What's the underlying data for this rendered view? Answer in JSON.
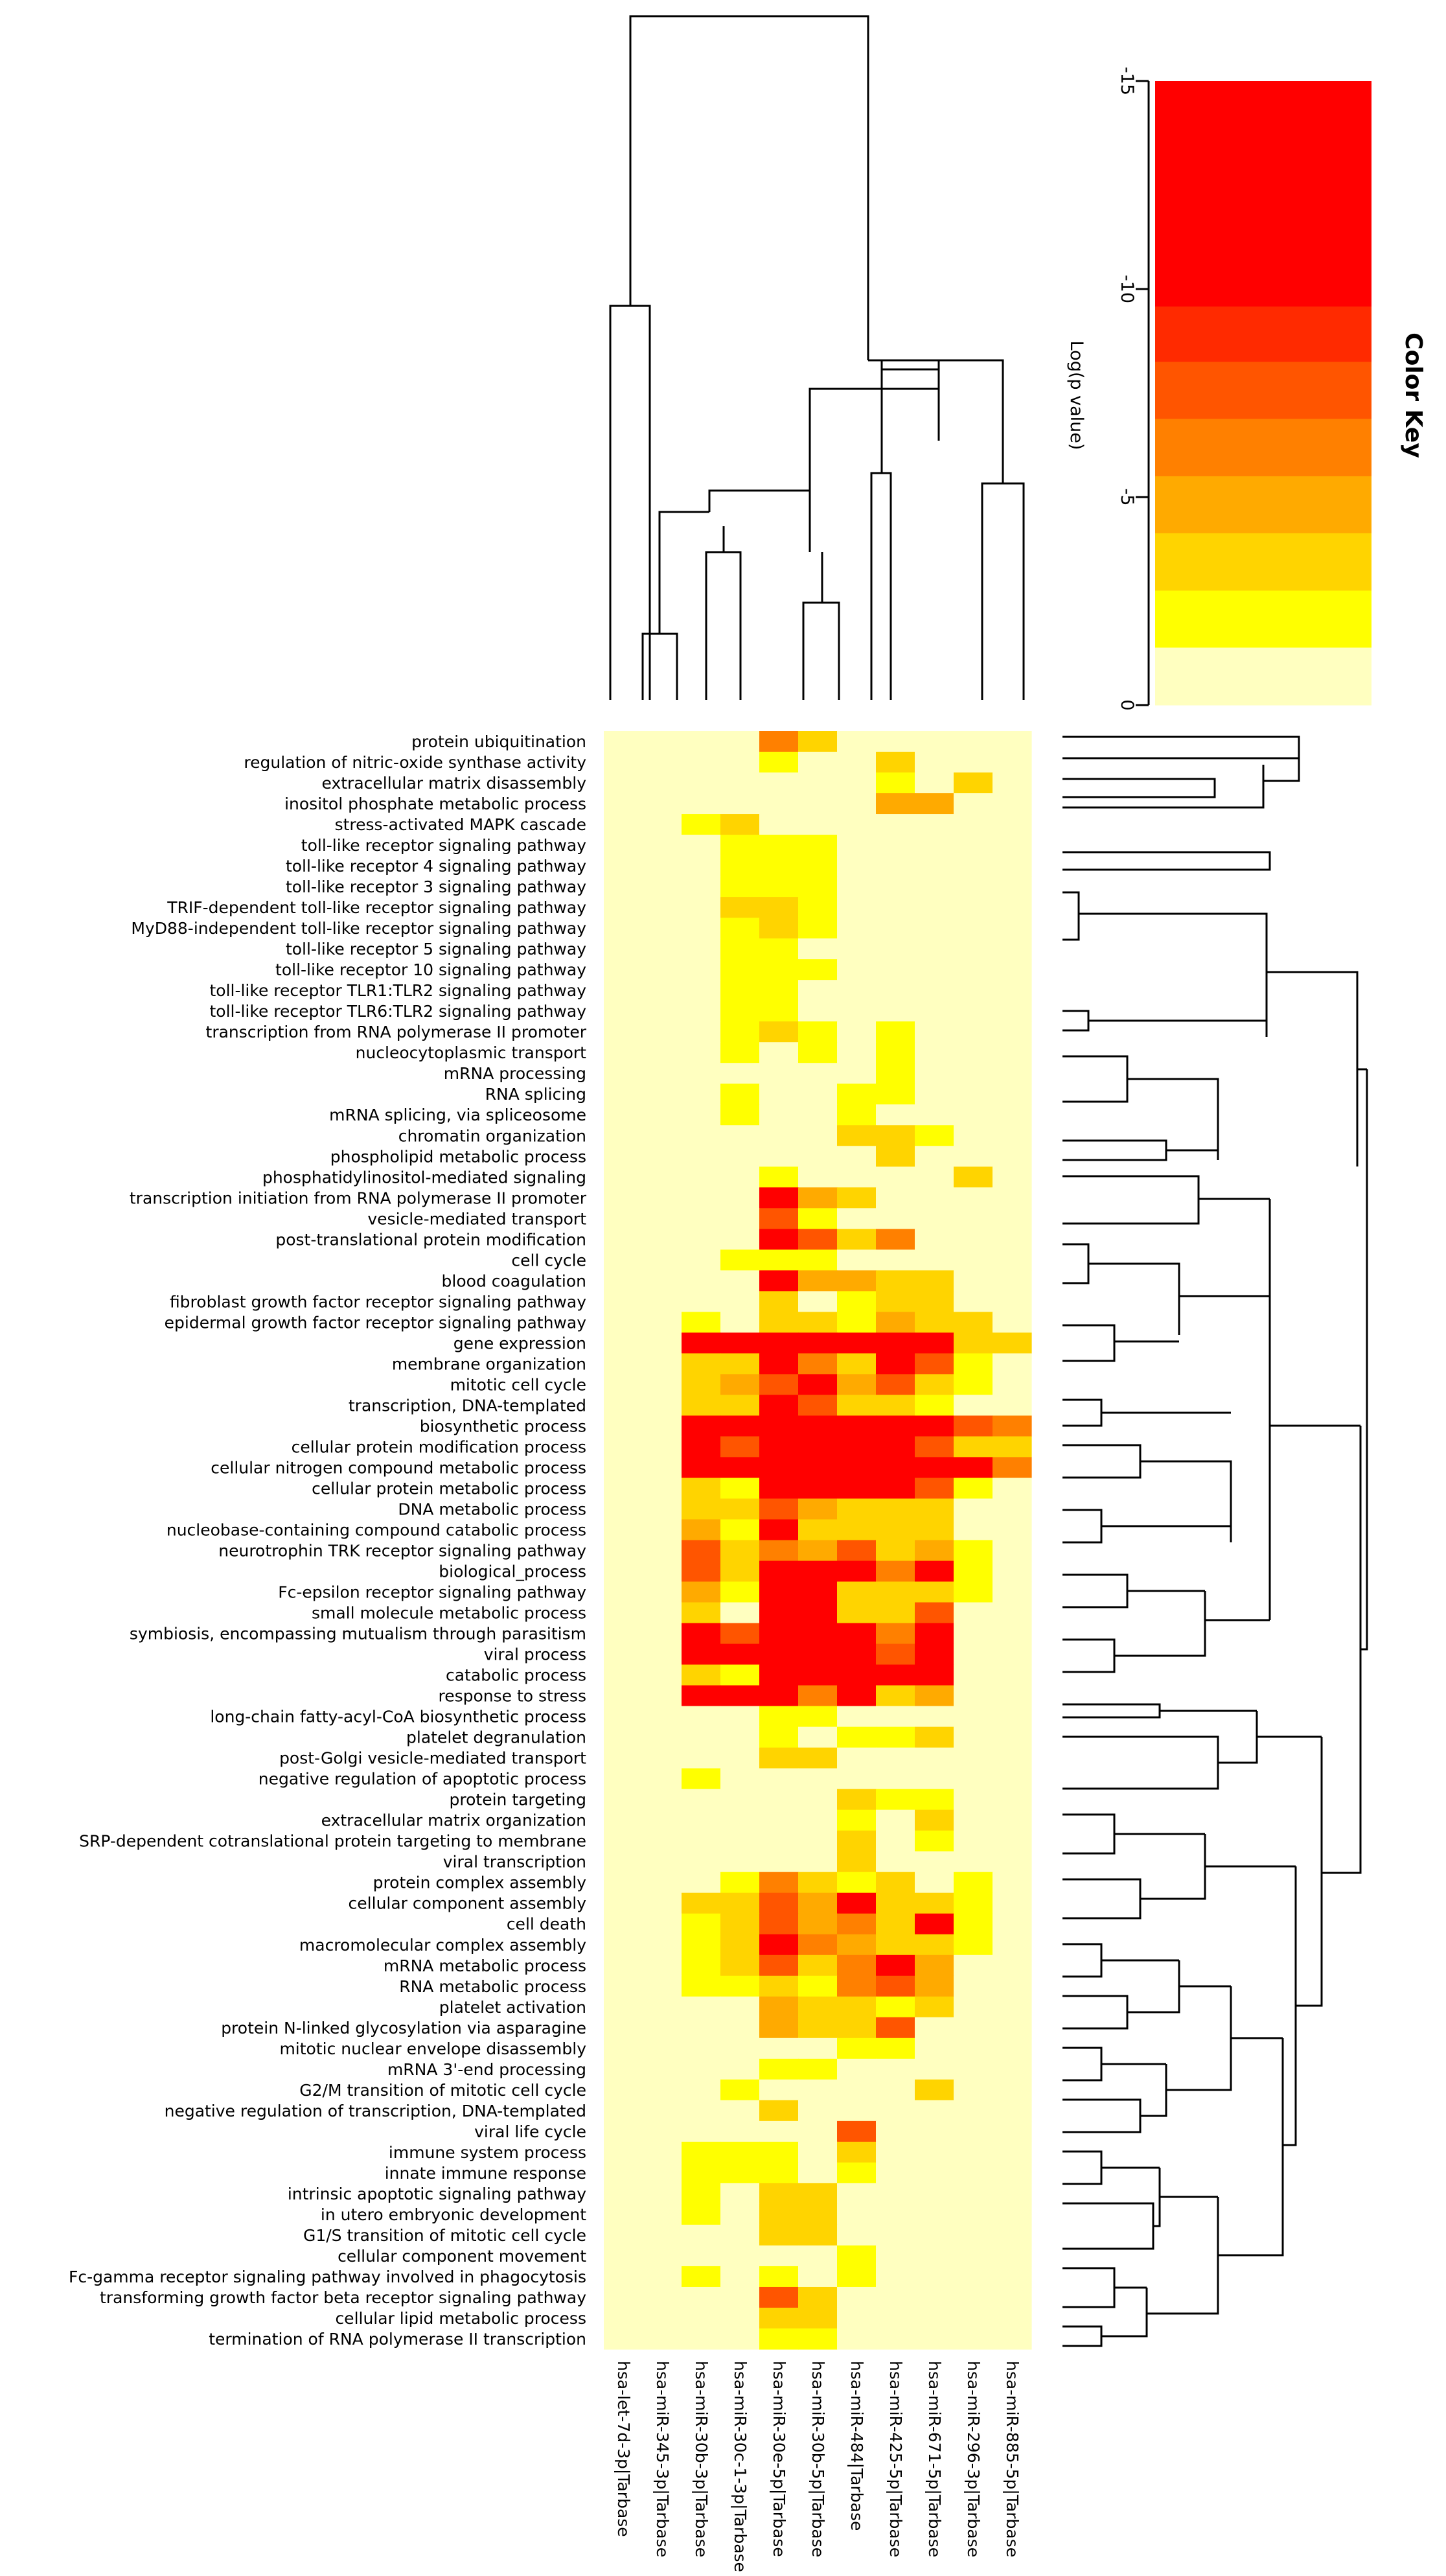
{
  "chart_data": {
    "type": "heatmap",
    "title": "",
    "value_label": "Log(p value)",
    "columns": [
      "hsa-let-7d-3p|Tarbase",
      "hsa-miR-345-3p|Tarbase",
      "hsa-miR-30b-3p|Tarbase",
      "hsa-miR-30c-1-3p|Tarbase",
      "hsa-miR-30e-5p|Tarbase",
      "hsa-miR-30b-5p|Tarbase",
      "hsa-miR-484|Tarbase",
      "hsa-miR-425-5p|Tarbase",
      "hsa-miR-671-5p|Tarbase",
      "hsa-miR-296-3p|Tarbase",
      "hsa-miR-885-5p|Tarbase"
    ],
    "rows": [
      "protein ubiquitination",
      "regulation of nitric-oxide synthase activity",
      "extracellular matrix disassembly",
      "inositol phosphate metabolic process",
      "stress-activated MAPK cascade",
      "toll-like receptor signaling pathway",
      "toll-like receptor 4 signaling pathway",
      "toll-like receptor 3 signaling pathway",
      "TRIF-dependent toll-like receptor signaling pathway",
      "MyD88-independent toll-like receptor signaling pathway",
      "toll-like receptor 5 signaling pathway",
      "toll-like receptor 10 signaling pathway",
      "toll-like receptor TLR1:TLR2 signaling pathway",
      "toll-like receptor TLR6:TLR2 signaling pathway",
      "transcription from RNA polymerase II promoter",
      "nucleocytoplasmic transport",
      "mRNA processing",
      "RNA splicing",
      "mRNA splicing, via spliceosome",
      "chromatin organization",
      "phospholipid metabolic process",
      "phosphatidylinositol-mediated signaling",
      "transcription initiation from RNA polymerase II promoter",
      "vesicle-mediated transport",
      "post-translational protein modification",
      "cell cycle",
      "blood coagulation",
      "fibroblast growth factor receptor signaling pathway",
      "epidermal growth factor receptor signaling pathway",
      "gene expression",
      "membrane organization",
      "mitotic cell cycle",
      "transcription, DNA-templated",
      "biosynthetic process",
      "cellular protein modification process",
      "cellular nitrogen compound metabolic process",
      "cellular protein metabolic process",
      "DNA metabolic process",
      "nucleobase-containing compound catabolic process",
      "neurotrophin TRK receptor signaling pathway",
      "biological_process",
      "Fc-epsilon receptor signaling pathway",
      "small molecule metabolic process",
      "symbiosis, encompassing mutualism through parasitism",
      "viral process",
      "catabolic process",
      "response to stress",
      "long-chain fatty-acyl-CoA biosynthetic process",
      "platelet degranulation",
      "post-Golgi vesicle-mediated transport",
      "negative regulation of apoptotic process",
      "protein targeting",
      "extracellular matrix organization",
      "SRP-dependent cotranslational protein targeting to membrane",
      "viral transcription",
      "protein complex assembly",
      "cellular component assembly",
      "cell death",
      "macromolecular complex assembly",
      "mRNA metabolic process",
      "RNA metabolic process",
      "platelet activation",
      "protein N-linked glycosylation via asparagine",
      "mitotic nuclear envelope disassembly",
      "mRNA 3'-end processing",
      "G2/M transition of mitotic cell cycle",
      "negative regulation of transcription, DNA-templated",
      "viral life cycle",
      "immune system process",
      "innate immune response",
      "intrinsic apoptotic signaling pathway",
      "in utero embryonic development",
      "G1/S transition of mitotic cell cycle",
      "cellular component movement",
      "Fc-gamma receptor signaling pathway involved in phagocytosis",
      "transforming growth factor beta receptor signaling pathway",
      "cellular lipid metabolic process",
      "termination of RNA polymerase II transcription"
    ],
    "values": [
      [
        0,
        0,
        0,
        0,
        -6,
        -3,
        0,
        0,
        0,
        0,
        0
      ],
      [
        0,
        0,
        0,
        0,
        -2,
        0,
        0,
        -4,
        0,
        0,
        0
      ],
      [
        0,
        0,
        0,
        0,
        0,
        0,
        0,
        -2,
        0,
        -4,
        0
      ],
      [
        0,
        0,
        0,
        0,
        0,
        0,
        0,
        -5,
        -5,
        0,
        0
      ],
      [
        0,
        0,
        -2,
        -3,
        0,
        0,
        0,
        0,
        0,
        0,
        0
      ],
      [
        0,
        0,
        0,
        -2,
        -2,
        -2,
        0,
        0,
        0,
        0,
        0
      ],
      [
        0,
        0,
        0,
        -2,
        -2,
        -2,
        0,
        0,
        0,
        0,
        0
      ],
      [
        0,
        0,
        0,
        -2,
        -2,
        -2,
        0,
        0,
        0,
        0,
        0
      ],
      [
        0,
        0,
        0,
        -3,
        -3,
        -2,
        0,
        0,
        0,
        0,
        0
      ],
      [
        0,
        0,
        0,
        -2,
        -3,
        -2,
        0,
        0,
        0,
        0,
        0
      ],
      [
        0,
        0,
        0,
        -2,
        -2,
        0,
        0,
        0,
        0,
        0,
        0
      ],
      [
        0,
        0,
        0,
        -2,
        -2,
        -2,
        0,
        0,
        0,
        0,
        0
      ],
      [
        0,
        0,
        0,
        -2,
        -2,
        0,
        0,
        0,
        0,
        0,
        0
      ],
      [
        0,
        0,
        0,
        -2,
        -2,
        0,
        0,
        0,
        0,
        0,
        0
      ],
      [
        0,
        0,
        0,
        -2,
        -3,
        -2,
        0,
        -2,
        0,
        0,
        0
      ],
      [
        0,
        0,
        0,
        -2,
        0,
        -2,
        0,
        -2,
        0,
        0,
        0
      ],
      [
        0,
        0,
        0,
        0,
        0,
        0,
        0,
        -2,
        0,
        0,
        0
      ],
      [
        0,
        0,
        0,
        -2,
        0,
        0,
        -2,
        -2,
        0,
        0,
        0
      ],
      [
        0,
        0,
        0,
        -2,
        0,
        0,
        -2,
        0,
        0,
        0,
        0
      ],
      [
        0,
        0,
        0,
        0,
        0,
        0,
        -3,
        -3,
        -2,
        0,
        0
      ],
      [
        0,
        0,
        0,
        0,
        0,
        0,
        0,
        -3,
        0,
        0,
        0
      ],
      [
        0,
        0,
        0,
        0,
        -2,
        0,
        0,
        0,
        0,
        -3,
        0
      ],
      [
        0,
        0,
        0,
        0,
        -14,
        -5,
        -3,
        0,
        0,
        0,
        0
      ],
      [
        0,
        0,
        0,
        0,
        -8,
        -2,
        0,
        0,
        0,
        0,
        0
      ],
      [
        0,
        0,
        0,
        0,
        -14,
        -8,
        -4,
        -6,
        0,
        0,
        0
      ],
      [
        0,
        0,
        0,
        -2,
        -2,
        -2,
        0,
        0,
        0,
        0,
        0
      ],
      [
        0,
        0,
        0,
        0,
        -10,
        -5,
        -5,
        -3,
        -4,
        0,
        0
      ],
      [
        0,
        0,
        0,
        0,
        -3,
        0,
        -2,
        -3,
        -3,
        0,
        0
      ],
      [
        0,
        0,
        -2,
        0,
        -3,
        -4,
        -2,
        -5,
        -4,
        -3,
        0
      ],
      [
        0,
        0,
        -15,
        -15,
        -15,
        -15,
        -15,
        -15,
        -15,
        -4,
        -3
      ],
      [
        0,
        0,
        -4,
        -3,
        -10,
        -6,
        -4,
        -10,
        -8,
        -2,
        0
      ],
      [
        0,
        0,
        -3,
        -5,
        -8,
        -10,
        -5,
        -8,
        -3,
        -2,
        0
      ],
      [
        0,
        0,
        -3,
        -4,
        -10,
        -8,
        -3,
        -4,
        -2,
        0,
        0
      ],
      [
        0,
        0,
        -15,
        -15,
        -15,
        -15,
        -15,
        -15,
        -10,
        -8,
        -6
      ],
      [
        0,
        0,
        -15,
        -7,
        -15,
        -15,
        -15,
        -15,
        -8,
        -4,
        -3
      ],
      [
        0,
        0,
        -15,
        -15,
        -15,
        -15,
        -15,
        -15,
        -15,
        -15,
        -6
      ],
      [
        0,
        0,
        -3,
        -2,
        -15,
        -15,
        -15,
        -10,
        -8,
        -2,
        0
      ],
      [
        0,
        0,
        -3,
        -4,
        -8,
        -5,
        -3,
        -3,
        -3,
        0,
        0
      ],
      [
        0,
        0,
        -5,
        -2,
        -10,
        -4,
        -3,
        -4,
        -3,
        0,
        0
      ],
      [
        0,
        0,
        -7,
        -3,
        -6,
        -5,
        -8,
        -4,
        -5,
        -2,
        0
      ],
      [
        0,
        0,
        -8,
        -4,
        -15,
        -15,
        -10,
        -6,
        -10,
        -2,
        0
      ],
      [
        0,
        0,
        -5,
        -2,
        -15,
        -12,
        -3,
        -3,
        -3,
        -2,
        0
      ],
      [
        0,
        0,
        -4,
        0,
        -15,
        -10,
        -3,
        -3,
        -8,
        0,
        0
      ],
      [
        0,
        0,
        -10,
        -8,
        -15,
        -15,
        -15,
        -6,
        -10,
        0,
        0
      ],
      [
        0,
        0,
        -10,
        -10,
        -15,
        -15,
        -15,
        -8,
        -15,
        0,
        0
      ],
      [
        0,
        0,
        -3,
        -2,
        -15,
        -15,
        -15,
        -15,
        -15,
        0,
        0
      ],
      [
        0,
        0,
        -15,
        -10,
        -15,
        -6,
        -15,
        -3,
        -5,
        0,
        0
      ],
      [
        0,
        0,
        0,
        0,
        -2,
        -2,
        0,
        0,
        0,
        0,
        0
      ],
      [
        0,
        0,
        0,
        0,
        -2,
        0,
        -2,
        -2,
        -3,
        0,
        0
      ],
      [
        0,
        0,
        0,
        0,
        -3,
        -3,
        0,
        0,
        0,
        0,
        0
      ],
      [
        0,
        0,
        -2,
        0,
        0,
        0,
        0,
        0,
        0,
        0,
        0
      ],
      [
        0,
        0,
        0,
        0,
        0,
        0,
        -3,
        -2,
        -2,
        0,
        0
      ],
      [
        0,
        0,
        0,
        0,
        0,
        0,
        -2,
        0,
        -3,
        0,
        0
      ],
      [
        0,
        0,
        0,
        0,
        0,
        0,
        -3,
        0,
        -2,
        0,
        0
      ],
      [
        0,
        0,
        0,
        0,
        0,
        0,
        -4,
        0,
        0,
        0,
        0
      ],
      [
        0,
        0,
        0,
        -2,
        -6,
        -4,
        -2,
        -3,
        0,
        -2,
        0
      ],
      [
        0,
        0,
        -4,
        -3,
        -8,
        -5,
        -15,
        -4,
        -3,
        -2,
        0
      ],
      [
        0,
        0,
        -2,
        -3,
        -8,
        -5,
        -6,
        -3,
        -10,
        -2,
        0
      ],
      [
        0,
        0,
        -2,
        -4,
        -10,
        -6,
        -5,
        -3,
        -4,
        -2,
        0
      ],
      [
        0,
        0,
        -2,
        -3,
        -8,
        -3,
        -6,
        -10,
        -5,
        0,
        0
      ],
      [
        0,
        0,
        -2,
        -2,
        -4,
        -2,
        -6,
        -8,
        -5,
        0,
        0
      ],
      [
        0,
        0,
        0,
        0,
        -5,
        -3,
        -4,
        -2,
        -3,
        0,
        0
      ],
      [
        0,
        0,
        0,
        0,
        -5,
        -4,
        -3,
        -7,
        0,
        0,
        0
      ],
      [
        0,
        0,
        0,
        0,
        0,
        0,
        -2,
        -2,
        0,
        0,
        0
      ],
      [
        0,
        0,
        0,
        0,
        -2,
        -2,
        0,
        0,
        0,
        0,
        0
      ],
      [
        0,
        0,
        0,
        -2,
        0,
        0,
        0,
        0,
        -3,
        0,
        0
      ],
      [
        0,
        0,
        0,
        0,
        -3,
        0,
        0,
        0,
        0,
        0,
        0
      ],
      [
        0,
        0,
        0,
        0,
        0,
        0,
        -8,
        0,
        0,
        0,
        0
      ],
      [
        0,
        0,
        -2,
        -2,
        -2,
        0,
        -3,
        0,
        0,
        0,
        0
      ],
      [
        0,
        0,
        -2,
        -2,
        -2,
        0,
        -2,
        0,
        0,
        0,
        0
      ],
      [
        0,
        0,
        -2,
        0,
        -4,
        -3,
        0,
        0,
        0,
        0,
        0
      ],
      [
        0,
        0,
        -2,
        0,
        -4,
        -3,
        0,
        0,
        0,
        0,
        0
      ],
      [
        0,
        0,
        0,
        0,
        -3,
        -3,
        0,
        0,
        0,
        0,
        0
      ],
      [
        0,
        0,
        0,
        0,
        0,
        0,
        -2,
        0,
        0,
        0,
        0
      ],
      [
        0,
        0,
        -2,
        0,
        -2,
        0,
        -2,
        0,
        0,
        0,
        0
      ],
      [
        0,
        0,
        0,
        0,
        -7,
        -4,
        0,
        0,
        0,
        0,
        0
      ],
      [
        0,
        0,
        0,
        0,
        -3,
        -3,
        0,
        0,
        0,
        0,
        0
      ],
      [
        0,
        0,
        0,
        0,
        -2,
        -2,
        0,
        0,
        0,
        0,
        0
      ]
    ],
    "color_key": {
      "title": "Color Key",
      "label": "Log(p value)",
      "ticks": [
        "-15",
        "-10",
        "-5",
        "0"
      ],
      "range": [
        -15,
        0
      ],
      "bands": [
        {
          "min": -15,
          "max": -9.58,
          "color": "#ff0000"
        },
        {
          "min": -9.58,
          "max": -8.25,
          "color": "#ff2a00"
        },
        {
          "min": -8.25,
          "max": -6.88,
          "color": "#ff5500"
        },
        {
          "min": -6.88,
          "max": -5.5,
          "color": "#ff8000"
        },
        {
          "min": -5.5,
          "max": -4.13,
          "color": "#ffaa00"
        },
        {
          "min": -4.13,
          "max": -2.75,
          "color": "#ffd400"
        },
        {
          "min": -2.75,
          "max": -1.38,
          "color": "#ffff00"
        },
        {
          "min": -1.38,
          "max": 0,
          "color": "#ffffc0"
        }
      ]
    }
  }
}
